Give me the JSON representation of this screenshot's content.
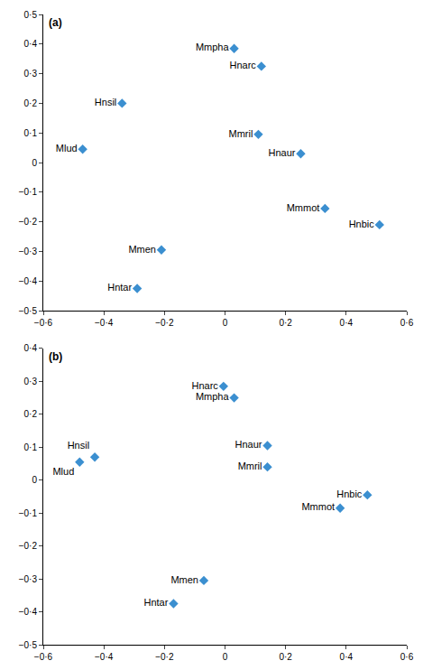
{
  "chart_data": [
    {
      "type": "scatter",
      "title": "(a)",
      "labels": [
        "Mmpha",
        "Hnarc",
        "Hnsil",
        "Mlud",
        "Mmril",
        "Hnaur",
        "Mmmot",
        "Hnbic",
        "Mmen",
        "Hntar"
      ],
      "x": [
        0.03,
        0.12,
        -0.34,
        -0.47,
        0.11,
        0.25,
        0.33,
        0.51,
        -0.21,
        -0.29
      ],
      "values": [
        0.385,
        0.325,
        0.2,
        0.045,
        0.095,
        0.03,
        -0.155,
        -0.21,
        -0.295,
        -0.425
      ],
      "color": "#3b8fd0",
      "marker": "diamond",
      "grid": false,
      "xlim": [
        -0.6,
        0.6
      ],
      "xticks": [
        {
          "value": -0.6,
          "label": "−0·6"
        },
        {
          "value": -0.4,
          "label": "−0·4"
        },
        {
          "value": -0.2,
          "label": "−0·2"
        },
        0,
        {
          "value": 0.2,
          "label": "0·2"
        },
        {
          "value": 0.4,
          "label": "0·4"
        },
        {
          "value": 0.6,
          "label": "0·6"
        }
      ],
      "ylim": [
        -0.5,
        0.5
      ],
      "yticks": [
        {
          "value": -0.5,
          "label": "−0·5"
        },
        {
          "value": -0.4,
          "label": "−0·4"
        },
        {
          "value": -0.3,
          "label": "−0·3"
        },
        {
          "value": -0.2,
          "label": "−0·2"
        },
        {
          "value": -0.1,
          "label": "−0·1"
        },
        0,
        {
          "value": 0.1,
          "label": "0·1"
        },
        {
          "value": 0.2,
          "label": "0·2"
        },
        {
          "value": 0.3,
          "label": "0·3"
        },
        {
          "value": 0.4,
          "label": "0·4"
        },
        {
          "value": 0.5,
          "label": "0·5"
        }
      ]
    },
    {
      "type": "scatter",
      "title": "(b)",
      "labels": [
        "Hnarc",
        "Mmpha",
        "Hnsil",
        "Mlud",
        "Hnaur",
        "Mmril",
        "Hnbic",
        "Mmmot",
        "Mmen",
        "Hntar"
      ],
      "x": [
        -0.005,
        0.03,
        -0.43,
        -0.48,
        0.14,
        0.14,
        0.47,
        0.38,
        -0.07,
        -0.17
      ],
      "values": [
        0.285,
        0.25,
        0.07,
        0.055,
        0.105,
        0.04,
        -0.045,
        -0.085,
        -0.305,
        -0.375
      ],
      "color": "#3b8fd0",
      "marker": "diamond",
      "grid": false,
      "xlim": [
        -0.6,
        0.6
      ],
      "xticks": [
        {
          "value": -0.6,
          "label": "−0·6"
        },
        {
          "value": -0.4,
          "label": "−0·4"
        },
        {
          "value": -0.2,
          "label": "−0·2"
        },
        0,
        {
          "value": 0.2,
          "label": "0·2"
        },
        {
          "value": 0.4,
          "label": "0·4"
        },
        {
          "value": 0.6,
          "label": "0·6"
        }
      ],
      "ylim": [
        -0.5,
        0.4
      ],
      "yticks": [
        {
          "value": -0.5,
          "label": "−0·5"
        },
        {
          "value": -0.4,
          "label": "−0·4"
        },
        {
          "value": -0.3,
          "label": "−0·3"
        },
        {
          "value": -0.2,
          "label": "−0·2"
        },
        {
          "value": -0.1,
          "label": "−0·1"
        },
        0,
        {
          "value": 0.1,
          "label": "0·1"
        },
        {
          "value": 0.2,
          "label": "0·2"
        },
        {
          "value": 0.3,
          "label": "0·3"
        },
        {
          "value": 0.4,
          "label": "0·4"
        }
      ]
    }
  ]
}
